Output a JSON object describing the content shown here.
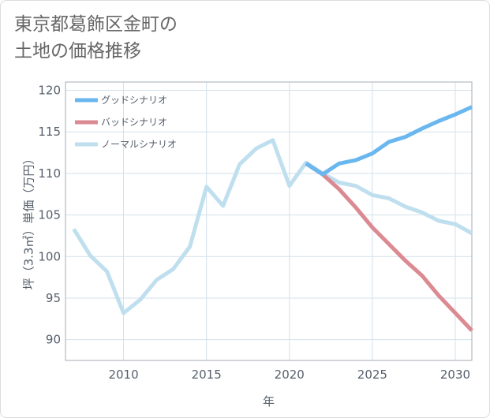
{
  "title": {
    "line1": "東京都葛飾区金町の",
    "line2": "土地の価格推移"
  },
  "chart_data": {
    "type": "line",
    "title": "東京都葛飾区金町の土地の価格推移",
    "xlabel": "年",
    "ylabel": "坪（3.3㎡）単価（万円）",
    "xlim": [
      2006.5,
      2031
    ],
    "ylim": [
      87.5,
      121
    ],
    "xticks": [
      2010,
      2015,
      2020,
      2025,
      2030
    ],
    "yticks": [
      90,
      95,
      100,
      105,
      110,
      115,
      120
    ],
    "grid": true,
    "legend_position": "top-left",
    "series": [
      {
        "name": "グッドシナリオ",
        "color": "#6ab7ef",
        "x": [
          2021,
          2022,
          2023,
          2024,
          2025,
          2026,
          2027,
          2028,
          2029,
          2030,
          2031
        ],
        "y": [
          111.2,
          109.9,
          111.2,
          111.6,
          112.4,
          113.8,
          114.4,
          115.4,
          116.3,
          117.1,
          118.0
        ]
      },
      {
        "name": "バッドシナリオ",
        "color": "#db8a92",
        "x": [
          2021,
          2022,
          2023,
          2024,
          2025,
          2026,
          2027,
          2028,
          2029,
          2030,
          2031
        ],
        "y": [
          111.2,
          109.9,
          108.1,
          105.9,
          103.5,
          101.5,
          99.5,
          97.7,
          95.3,
          93.2,
          91.1
        ]
      },
      {
        "name": "ノーマルシナリオ",
        "color": "#bfdfee",
        "x": [
          2007,
          2008,
          2009,
          2010,
          2011,
          2012,
          2013,
          2014,
          2015,
          2016,
          2017,
          2018,
          2019,
          2020,
          2021,
          2022,
          2023,
          2024,
          2025,
          2026,
          2027,
          2028,
          2029,
          2030,
          2031
        ],
        "y": [
          103.3,
          100.1,
          98.2,
          93.2,
          94.8,
          97.2,
          98.5,
          101.2,
          108.4,
          106.1,
          111.1,
          113.0,
          114.0,
          108.5,
          111.3,
          110.0,
          108.9,
          108.5,
          107.4,
          107.0,
          106.0,
          105.3,
          104.3,
          103.9,
          102.8
        ]
      }
    ]
  }
}
